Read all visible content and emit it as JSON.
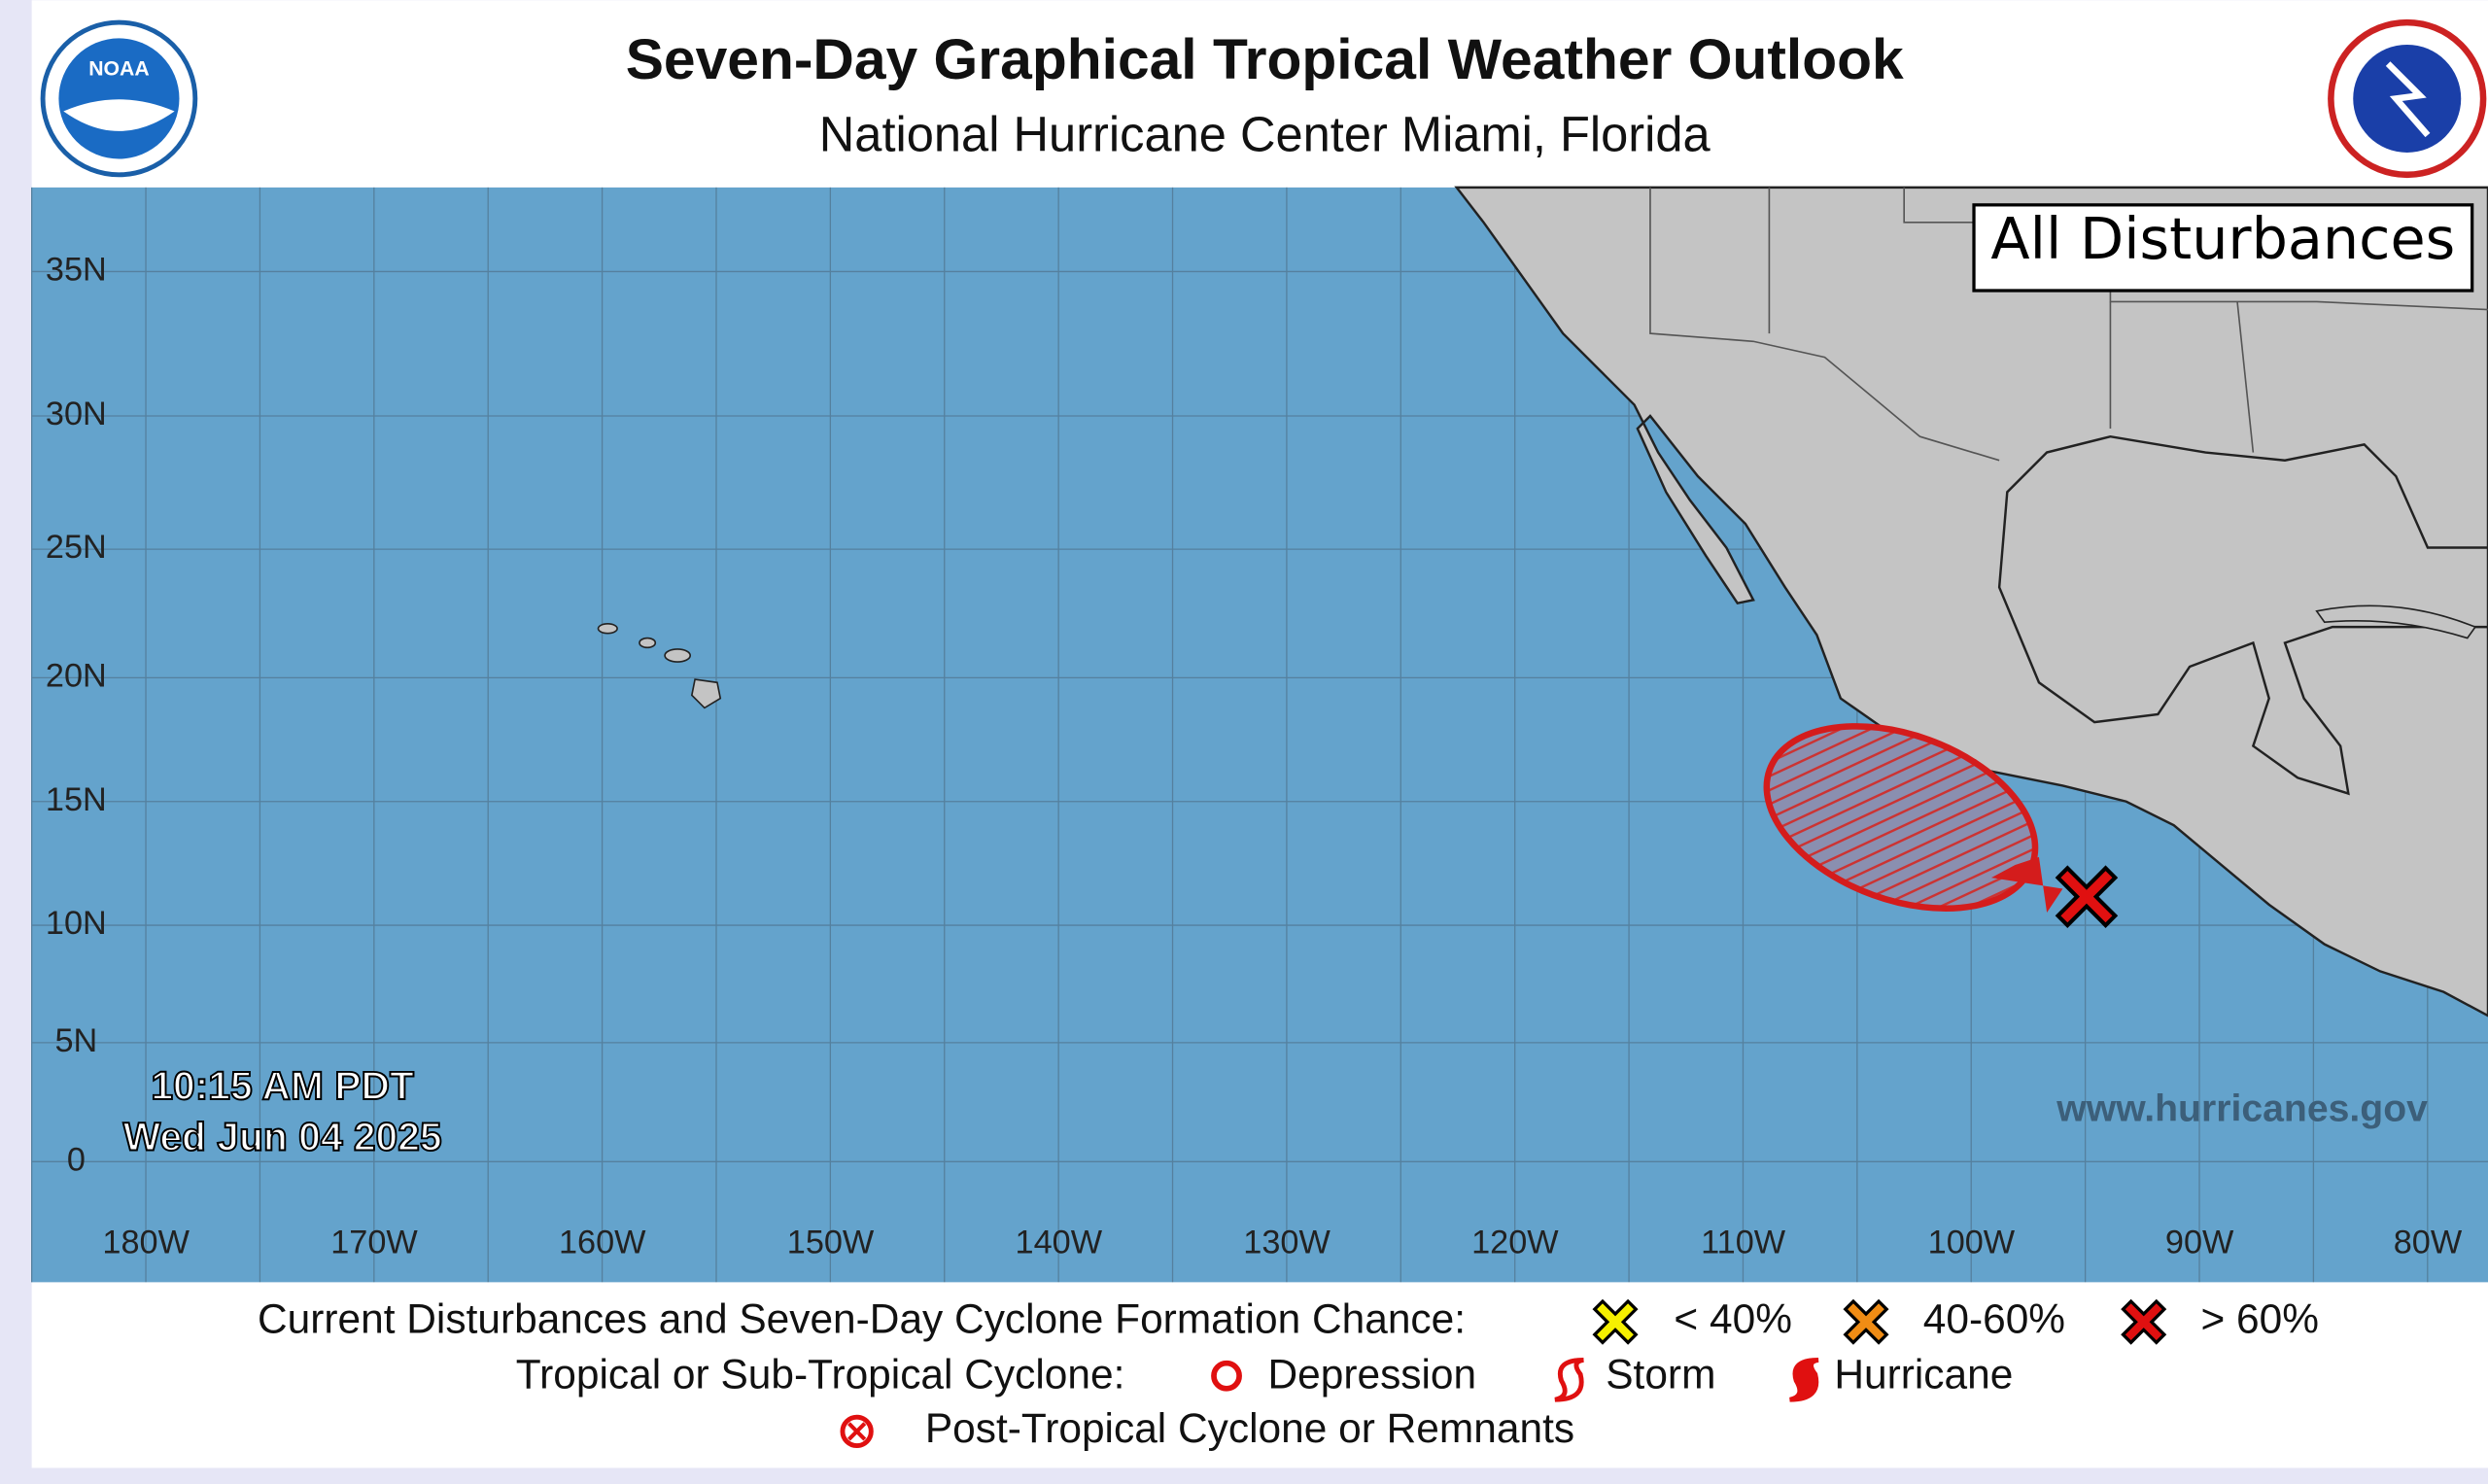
{
  "header": {
    "title": "Seven-Day Graphical Tropical Weather Outlook",
    "subtitle": "National Hurricane Center  Miami, Florida"
  },
  "map": {
    "badge": "All Disturbances",
    "timestamp": [
      "10:15 AM PDT",
      "Wed Jun 04 2025"
    ],
    "website": "www.hurricanes.gov",
    "lat_labels": [
      "35N",
      "30N",
      "25N",
      "20N",
      "15N",
      "10N",
      "5N",
      "0"
    ],
    "lon_labels": [
      "180W",
      "170W",
      "160W",
      "150W",
      "140W",
      "130W",
      "120W",
      "110W",
      "100W",
      "90W",
      "80W"
    ]
  },
  "legend": {
    "formation_label": "Current Disturbances and Seven-Day Cyclone Formation Chance:",
    "formation_chances": [
      "< 40%",
      "40-60%",
      "> 60%"
    ],
    "cyclone_label": "Tropical or Sub-Tropical Cyclone:",
    "cyclone_types": [
      "Depression",
      "Storm",
      "Hurricane"
    ],
    "post_tropical": "Post-Tropical Cyclone or Remnants"
  }
}
